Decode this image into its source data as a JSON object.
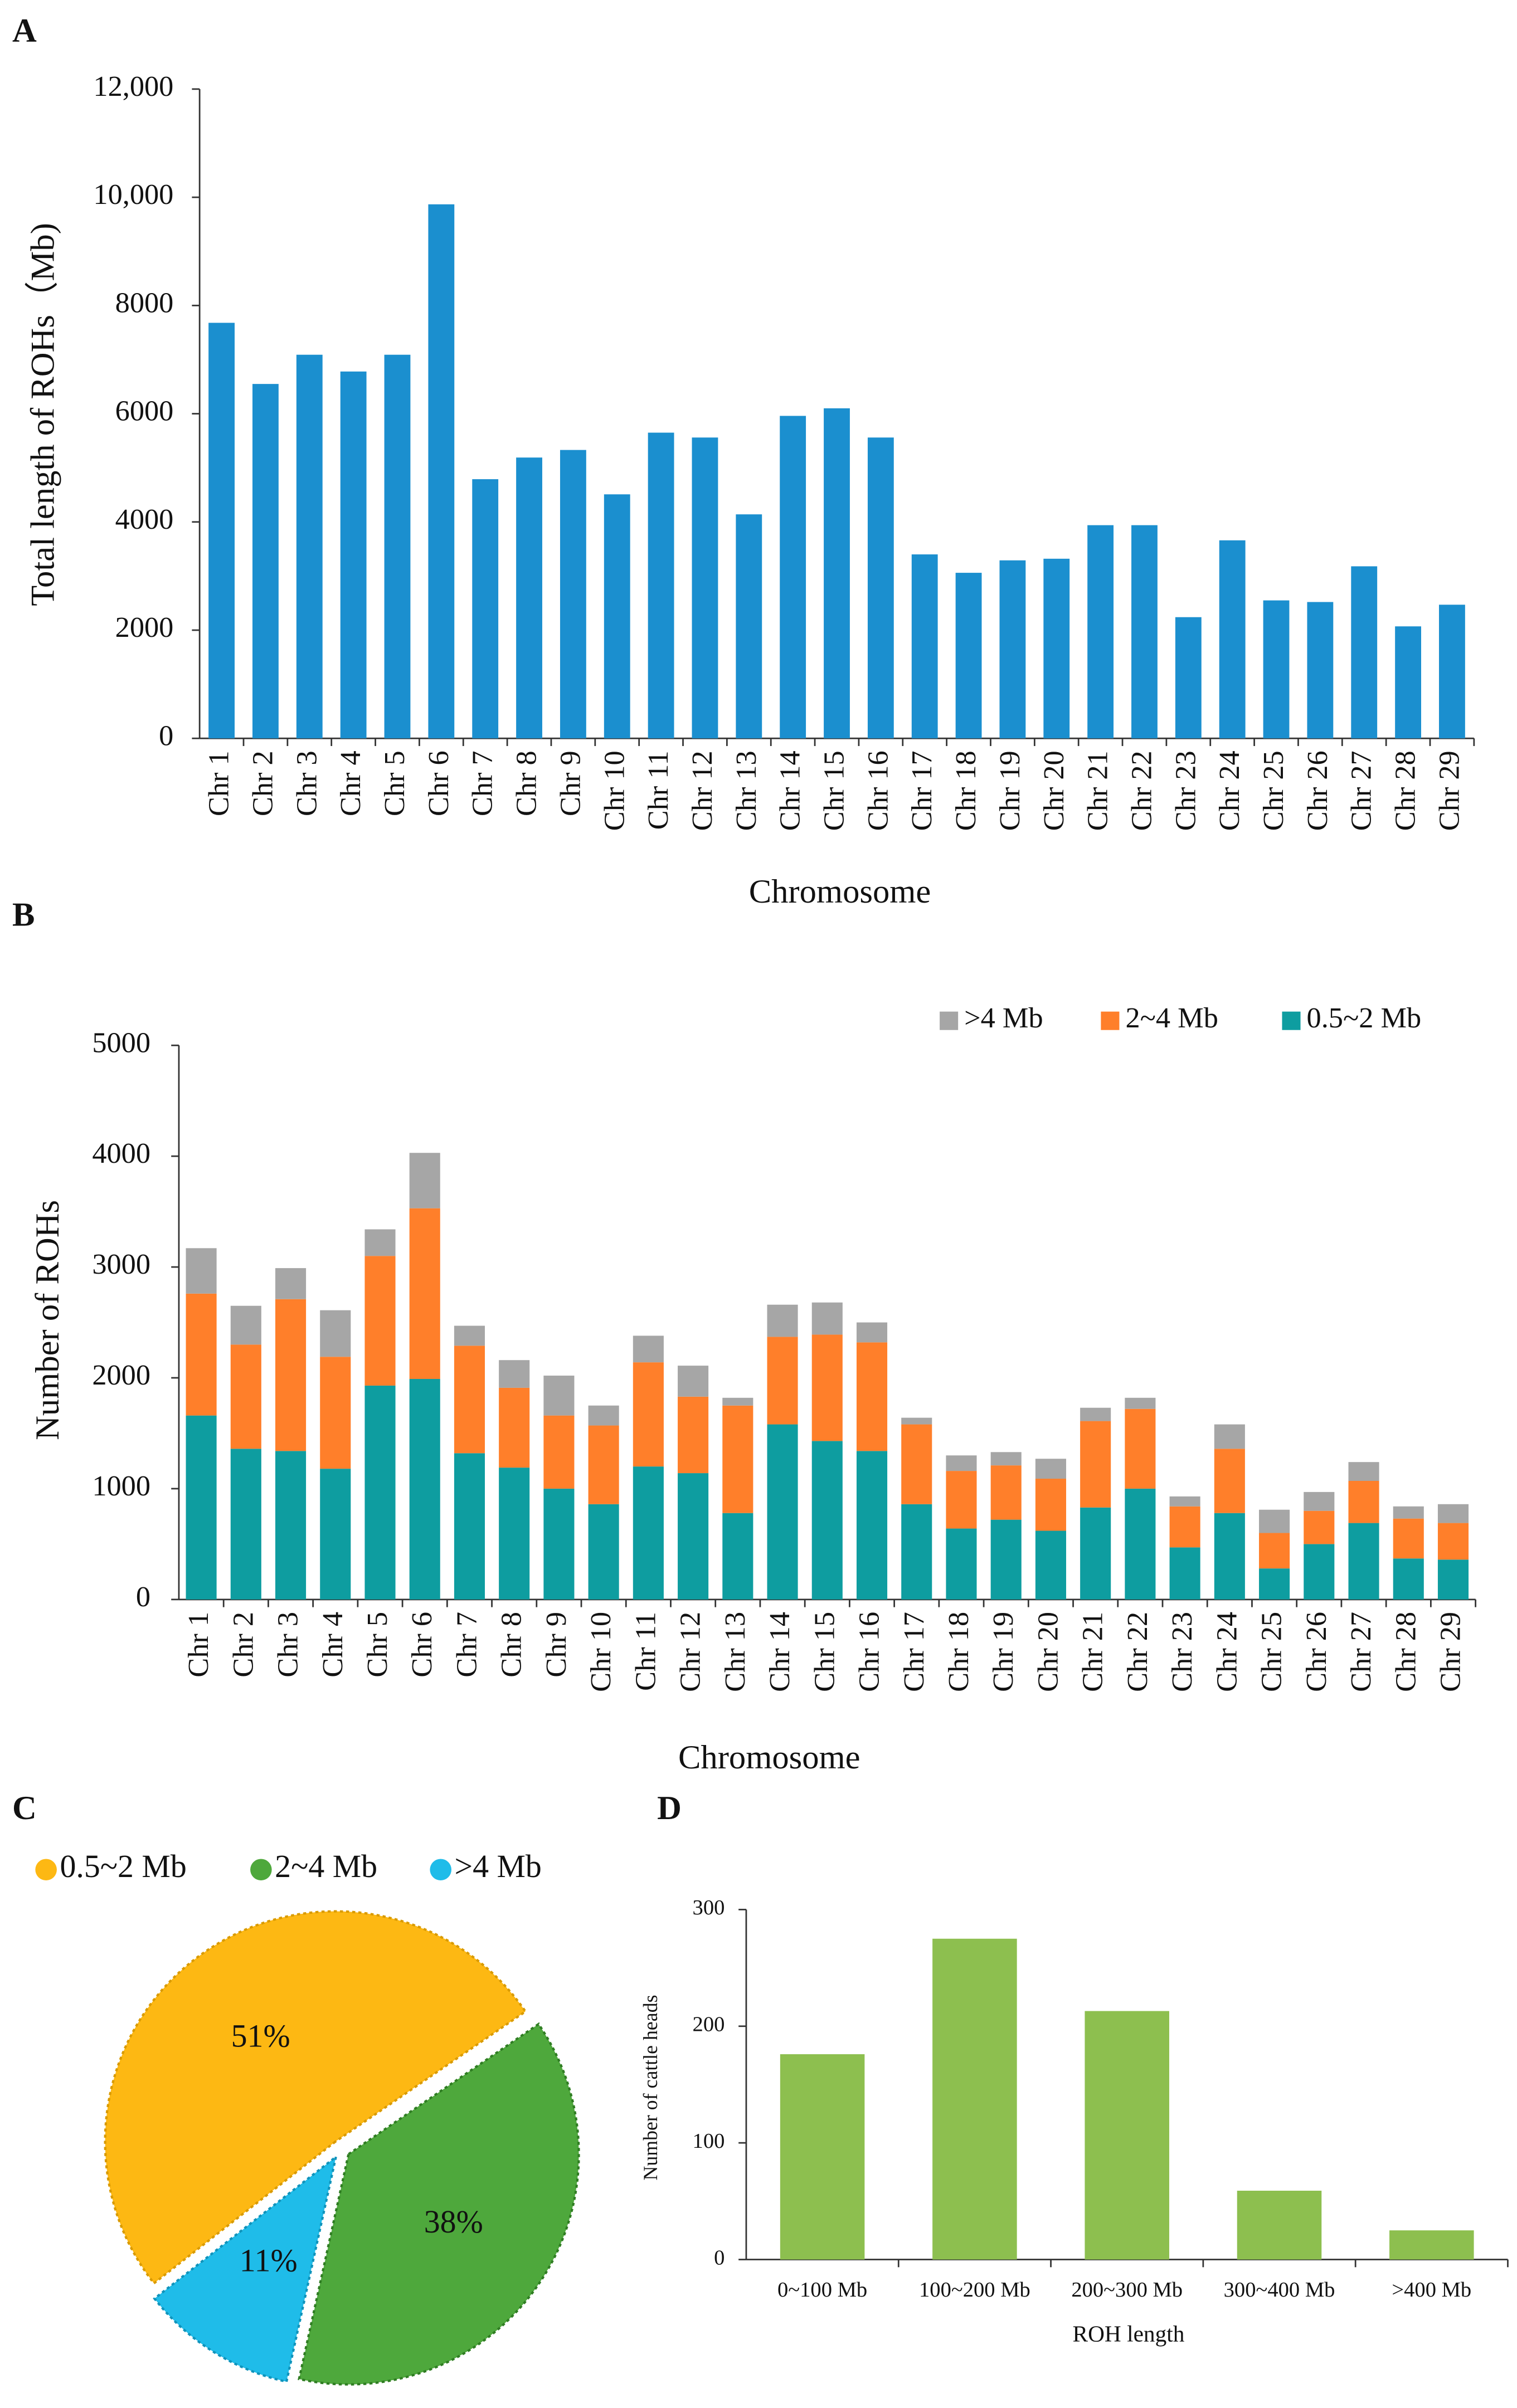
{
  "chart_data": [
    {
      "type": "bar",
      "panel": "A",
      "x_label": "Chromosome",
      "y_label": "Total length of ROHs（Mb)",
      "categories": [
        "Chr 1",
        "Chr 2",
        "Chr 3",
        "Chr 4",
        "Chr 5",
        "Chr 6",
        "Chr 7",
        "Chr 8",
        "Chr 9",
        "Chr 10",
        "Chr 11",
        "Chr 12",
        "Chr 13",
        "Chr 14",
        "Chr 15",
        "Chr 16",
        "Chr 17",
        "Chr 18",
        "Chr 19",
        "Chr 20",
        "Chr 21",
        "Chr 22",
        "Chr 23",
        "Chr 24",
        "Chr 25",
        "Chr 26",
        "Chr 27",
        "Chr 28",
        "Chr 29"
      ],
      "values": [
        7680,
        6550,
        7090,
        6780,
        7090,
        9870,
        4790,
        5190,
        5330,
        4510,
        5650,
        5560,
        4140,
        5960,
        6100,
        5560,
        3400,
        3060,
        3290,
        3320,
        3940,
        3940,
        2240,
        3660,
        2550,
        2520,
        3180,
        2070,
        2470
      ],
      "color": "#1b8fcf",
      "ylim": [
        0,
        12000
      ],
      "yticks": [
        0,
        2000,
        4000,
        6000,
        8000,
        {
          "value": 10000,
          "label": "10,000"
        },
        {
          "value": 12000,
          "label": "12,000"
        }
      ]
    },
    {
      "type": "stacked_bar",
      "panel": "B",
      "x_label": "Chromosome",
      "y_label": "Number of ROHs",
      "categories": [
        "Chr 1",
        "Chr 2",
        "Chr 3",
        "Chr 4",
        "Chr 5",
        "Chr 6",
        "Chr 7",
        "Chr 8",
        "Chr 9",
        "Chr 10",
        "Chr 11",
        "Chr 12",
        "Chr 13",
        "Chr 14",
        "Chr 15",
        "Chr 16",
        "Chr 17",
        "Chr 18",
        "Chr 19",
        "Chr 20",
        "Chr 21",
        "Chr 22",
        "Chr 23",
        "Chr 24",
        "Chr 25",
        "Chr 26",
        "Chr 27",
        "Chr 28",
        "Chr 29"
      ],
      "series": [
        {
          "name": "0.5~2 Mb",
          "color": "#0e9da0",
          "values": [
            1660,
            1360,
            1340,
            1180,
            1930,
            1990,
            1320,
            1190,
            1000,
            860,
            1200,
            1140,
            780,
            1580,
            1430,
            1340,
            860,
            640,
            720,
            620,
            830,
            1000,
            470,
            780,
            280,
            500,
            690,
            370,
            360
          ]
        },
        {
          "name": "2~4 Mb",
          "color": "#ff7f2a",
          "values": [
            1100,
            940,
            1370,
            1010,
            1170,
            1540,
            970,
            720,
            660,
            710,
            940,
            690,
            970,
            790,
            960,
            980,
            720,
            520,
            490,
            470,
            780,
            720,
            370,
            580,
            320,
            300,
            380,
            360,
            330
          ]
        },
        {
          "name": ">4 Mb",
          "color": "#a6a6a6",
          "values": [
            410,
            350,
            280,
            420,
            240,
            500,
            180,
            250,
            360,
            180,
            240,
            280,
            70,
            290,
            290,
            180,
            60,
            140,
            120,
            180,
            120,
            100,
            90,
            220,
            210,
            170,
            170,
            110,
            170
          ]
        }
      ],
      "ylim": [
        0,
        5000
      ],
      "yticks": [
        0,
        1000,
        2000,
        3000,
        4000,
        5000
      ]
    },
    {
      "type": "pie",
      "panel": "C",
      "categories": [
        "0.5~2 Mb",
        "2~4 Mb",
        ">4 Mb"
      ],
      "values": [
        51,
        38,
        11
      ],
      "value_labels": [
        "51%",
        "38%",
        "11%"
      ],
      "colors": [
        "#fdb813",
        "#4ea83c",
        "#1fbce9"
      ]
    },
    {
      "type": "bar",
      "panel": "D",
      "x_label": "ROH length",
      "y_label": "Number of cattle  heads",
      "categories": [
        "0~100 Mb",
        "100~200 Mb",
        "200~300 Mb",
        "300~400 Mb",
        ">400 Mb"
      ],
      "values": [
        176,
        275,
        213,
        59,
        25
      ],
      "color": "#8dbf4f",
      "ylim": [
        0,
        300
      ],
      "yticks": [
        0,
        100,
        200,
        300
      ]
    }
  ]
}
